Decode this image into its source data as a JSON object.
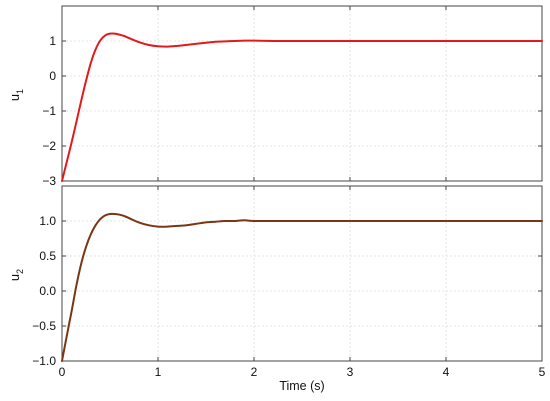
{
  "chart_data": [
    {
      "type": "line",
      "id": "top",
      "ylabel_main": "u",
      "ylabel_sub": "1",
      "xlabel": "",
      "xlim": [
        0,
        5
      ],
      "ylim": [
        -3,
        2
      ],
      "xticks": [
        0,
        1,
        2,
        3,
        4,
        5
      ],
      "yticks": [
        -3,
        -2,
        -1,
        0,
        1
      ],
      "ytick_labels": [
        "−3",
        "−2",
        "−1",
        "0",
        "1"
      ],
      "grid": true,
      "series": [
        {
          "color": "#e31a1c",
          "x": [
            0,
            0.05,
            0.1,
            0.15,
            0.2,
            0.25,
            0.3,
            0.35,
            0.4,
            0.45,
            0.5,
            0.55,
            0.6,
            0.65,
            0.7,
            0.8,
            0.9,
            1.0,
            1.1,
            1.2,
            1.3,
            1.4,
            1.5,
            1.6,
            1.7,
            1.8,
            1.9,
            2.0,
            2.2,
            2.4,
            2.6,
            2.8,
            3.0,
            3.5,
            4.0,
            4.5,
            5.0
          ],
          "values": [
            -3.0,
            -2.45,
            -1.9,
            -1.31,
            -0.71,
            -0.14,
            0.37,
            0.76,
            1.02,
            1.16,
            1.21,
            1.21,
            1.18,
            1.14,
            1.08,
            0.97,
            0.89,
            0.85,
            0.84,
            0.86,
            0.89,
            0.92,
            0.95,
            0.98,
            0.99,
            1.0,
            1.01,
            1.01,
            1.0,
            1.0,
            1.0,
            1.0,
            1.0,
            1.0,
            1.0,
            1.0,
            1.0
          ]
        }
      ]
    },
    {
      "type": "line",
      "id": "bottom",
      "ylabel_main": "u",
      "ylabel_sub": "2",
      "xlabel": "Time (s)",
      "xlim": [
        0,
        5
      ],
      "ylim": [
        -1,
        1.5
      ],
      "xticks": [
        0,
        1,
        2,
        3,
        4,
        5
      ],
      "yticks": [
        -1.0,
        -0.5,
        0.0,
        0.5,
        1.0
      ],
      "ytick_labels": [
        "−1.0",
        "−0.5",
        "0.0",
        "0.5",
        "1.0"
      ],
      "grid": true,
      "series": [
        {
          "color": "#7a3515",
          "x": [
            0,
            0.05,
            0.1,
            0.15,
            0.2,
            0.25,
            0.3,
            0.35,
            0.4,
            0.45,
            0.5,
            0.55,
            0.6,
            0.65,
            0.7,
            0.8,
            0.9,
            1.0,
            1.1,
            1.2,
            1.3,
            1.4,
            1.5,
            1.6,
            1.7,
            1.8,
            1.9,
            2.0,
            2.2,
            2.4,
            2.6,
            2.8,
            3.0,
            3.5,
            4.0,
            4.5,
            5.0
          ],
          "values": [
            -1.0,
            -0.64,
            -0.29,
            0.08,
            0.39,
            0.63,
            0.81,
            0.94,
            1.03,
            1.08,
            1.1,
            1.1,
            1.09,
            1.07,
            1.04,
            0.98,
            0.94,
            0.92,
            0.92,
            0.93,
            0.94,
            0.96,
            0.98,
            0.99,
            1.0,
            1.0,
            1.01,
            1.0,
            1.0,
            1.0,
            1.0,
            1.0,
            1.0,
            1.0,
            1.0,
            1.0,
            1.0
          ]
        }
      ]
    }
  ]
}
